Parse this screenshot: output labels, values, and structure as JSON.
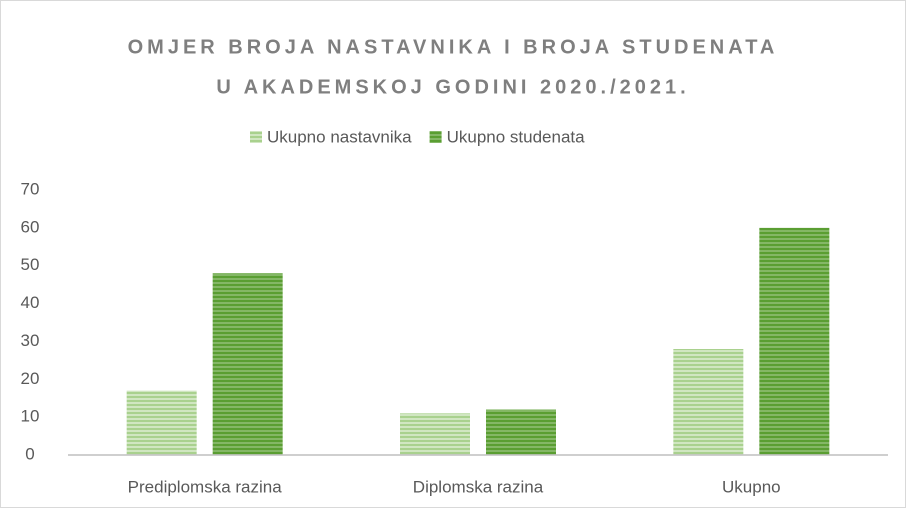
{
  "chart_data": {
    "type": "bar",
    "title": [
      "OMJER BROJA NASTAVNIKA I BROJA STUDENATA",
      "U AKADEMSKOJ GODINI 2020./2021."
    ],
    "categories": [
      "Prediplomska razina",
      "Diplomska razina",
      "Ukupno"
    ],
    "series": [
      {
        "name": "Ukupno nastavnika",
        "color": "#a9d18e",
        "values": [
          17,
          11,
          28
        ]
      },
      {
        "name": "Ukupno studenata",
        "color": "#5a9e32",
        "values": [
          48,
          12,
          60
        ]
      }
    ],
    "ylim": [
      0,
      70
    ],
    "yticks": [
      0,
      10,
      20,
      30,
      40,
      50,
      60,
      70
    ],
    "grid": false,
    "legend": "top"
  }
}
